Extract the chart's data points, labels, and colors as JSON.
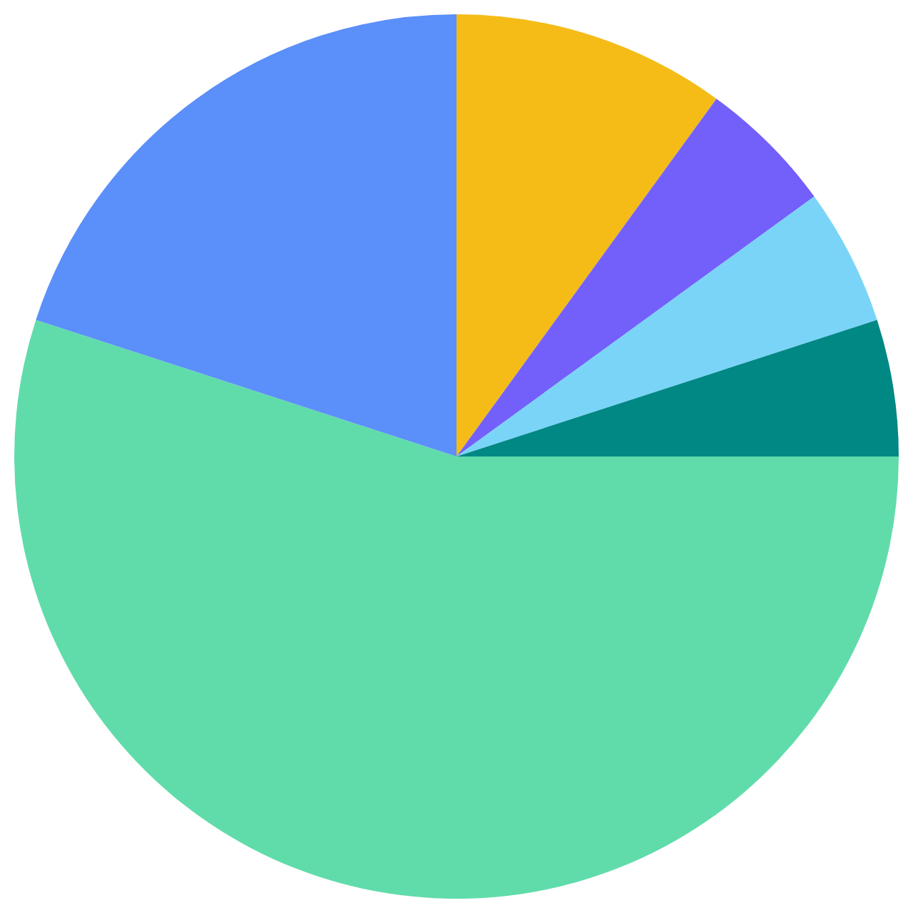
{
  "chart_data": {
    "type": "pie",
    "categories": [
      null,
      null,
      null,
      null,
      null,
      null
    ],
    "values": [
      10,
      5,
      5,
      5,
      55,
      20
    ],
    "colors": [
      "#f5bc18",
      "#7360fb",
      "#7ad4f8",
      "#008884",
      "#60dcaa",
      "#5b8ff9"
    ],
    "legend": false
  }
}
